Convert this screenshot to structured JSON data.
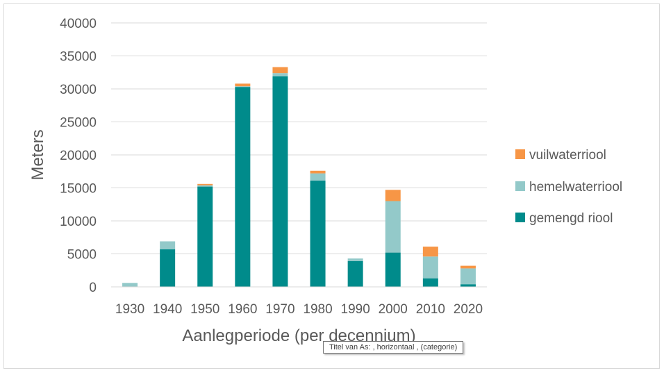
{
  "chart_data": {
    "type": "bar",
    "stacked": true,
    "categories": [
      "1930",
      "1940",
      "1950",
      "1960",
      "1970",
      "1980",
      "1990",
      "2000",
      "2010",
      "2020"
    ],
    "series": [
      {
        "name": "gemengd riool",
        "color": "#008B8B",
        "values": [
          0,
          5700,
          15200,
          30300,
          31900,
          16100,
          3900,
          5200,
          1300,
          400
        ]
      },
      {
        "name": "hemelwaterriool",
        "color": "#93C9C9",
        "values": [
          600,
          1200,
          200,
          100,
          500,
          1100,
          400,
          7800,
          3300,
          2400
        ]
      },
      {
        "name": "vuilwaterriool",
        "color": "#F79646",
        "values": [
          0,
          0,
          200,
          400,
          900,
          400,
          0,
          1700,
          1500,
          400
        ]
      }
    ],
    "xlabel": "Aanlegperiode (per decennium)",
    "ylabel": "Meters",
    "ylim": [
      0,
      40000
    ],
    "yticks": [
      "0",
      "5000",
      "10000",
      "15000",
      "20000",
      "25000",
      "30000",
      "35000",
      "40000"
    ],
    "grid": true,
    "legend_position": "right",
    "legend_order": [
      "vuilwaterriool",
      "hemelwaterriool",
      "gemengd riool"
    ]
  },
  "tooltip": {
    "text": "Titel van As: , horizontaal , (categorie)"
  }
}
